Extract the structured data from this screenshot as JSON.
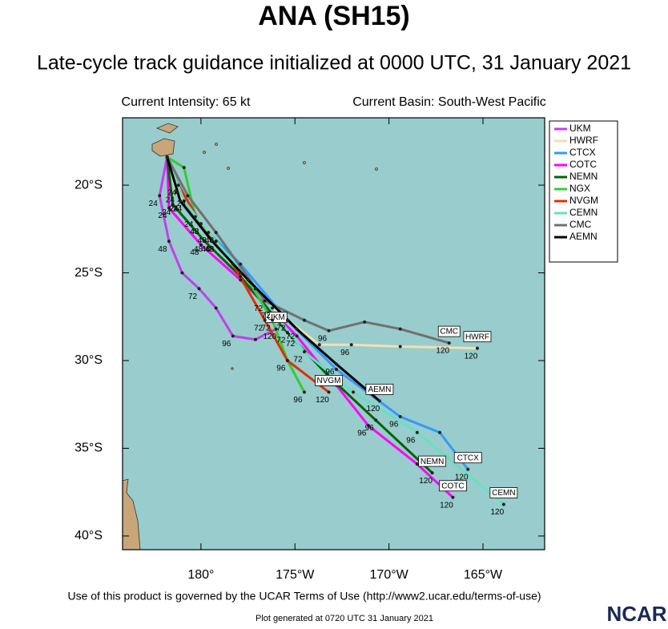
{
  "chart_data": {
    "type": "track",
    "title": "ANA (SH15)",
    "subtitle": "Late-cycle track guidance initialized at 0000 UTC, 31 January 2021",
    "current_intensity": "Current Intensity: 65 kt",
    "current_basin": "Current Basin: South-West Pacific",
    "terms": "Use of this product is governed by the UCAR Terms of Use (http://www2.ucar.edu/terms-of-use)",
    "generated": "Plot generated at 0720 UTC   31 January 2021",
    "logo": "NCAR",
    "xlim": [
      175.83,
      198.28
    ],
    "ylim": [
      -40.78,
      -16.16
    ],
    "xticks": [
      {
        "value": 180,
        "label": "180°"
      },
      {
        "value": 185,
        "label": "175°W"
      },
      {
        "value": 190,
        "label": "170°W"
      },
      {
        "value": 195,
        "label": "165°W"
      }
    ],
    "yticks": [
      {
        "value": -20,
        "label": "20°S"
      },
      {
        "value": -25,
        "label": "25°S"
      },
      {
        "value": -30,
        "label": "30°S"
      },
      {
        "value": -35,
        "label": "35°S"
      },
      {
        "value": -40,
        "label": "40°S"
      }
    ],
    "legend": "upper right",
    "series": [
      {
        "name": "UKM",
        "color": "#c040f0",
        "label_box": true,
        "x": [
          178.2,
          177.8,
          178.3,
          179.0,
          179.9,
          180.8,
          181.7,
          182.9,
          184.0
        ],
        "y": [
          -18.4,
          -20.6,
          -23.2,
          -25.0,
          -25.9,
          -27.0,
          -28.6,
          -28.8,
          -28.2
        ],
        "hour_labels": [
          null,
          24,
          48,
          null,
          72,
          null,
          96,
          null,
          120
        ]
      },
      {
        "name": "HWRF",
        "color": "#f5deb3",
        "label_box": true,
        "x": [
          178.2,
          178.7,
          180.0,
          182.1,
          183.8,
          186.3,
          188.0,
          190.6,
          194.7
        ],
        "y": [
          -18.4,
          -20.4,
          -22.2,
          -25.0,
          -27.0,
          -29.1,
          -29.1,
          -29.2,
          -29.3
        ],
        "hour_labels": [
          null,
          24,
          48,
          null,
          72,
          null,
          96,
          null,
          120
        ]
      },
      {
        "name": "CTCX",
        "color": "#3399ff",
        "label_box": true,
        "x": [
          178.2,
          178.9,
          180.4,
          182.1,
          184.6,
          187.2,
          190.6,
          192.7,
          194.2
        ],
        "y": [
          -18.4,
          -20.9,
          -22.7,
          -24.5,
          -27.7,
          -30.5,
          -33.2,
          -34.1,
          -36.2
        ],
        "hour_labels": [
          null,
          24,
          48,
          null,
          72,
          null,
          96,
          null,
          120
        ]
      },
      {
        "name": "COTC",
        "color": "#ff00ff",
        "label_box": true,
        "x": [
          178.2,
          178.3,
          180.0,
          182.1,
          185.1,
          187.2,
          188.9,
          191.5,
          193.4
        ],
        "y": [
          -18.4,
          -21.3,
          -23.4,
          -25.4,
          -28.6,
          -31.4,
          -33.7,
          -35.9,
          -37.8
        ],
        "hour_labels": [
          null,
          24,
          48,
          null,
          72,
          null,
          96,
          null,
          120
        ]
      },
      {
        "name": "NEMN",
        "color": "#006400",
        "label_box": true,
        "x": [
          178.2,
          178.5,
          180.2,
          182.1,
          184.6,
          186.8,
          189.3,
          192.3
        ],
        "y": [
          -18.4,
          -21.1,
          -23.2,
          -25.2,
          -28.4,
          -30.9,
          -33.4,
          -36.4
        ],
        "hour_labels": [
          null,
          24,
          48,
          null,
          72,
          null,
          96,
          120
        ]
      },
      {
        "name": "NGX",
        "color": "#33cc33",
        "label_box": false,
        "x": [
          178.2,
          179.1,
          179.7,
          180.8,
          182.5,
          183.8,
          184.6,
          185.5
        ],
        "y": [
          -18.4,
          -19.0,
          -21.8,
          -23.2,
          -25.4,
          -27.7,
          -30.0,
          -31.8
        ],
        "hour_labels": [
          null,
          null,
          24,
          48,
          null,
          72,
          null,
          96
        ]
      },
      {
        "name": "NVGM",
        "color": "#e03000",
        "label_box": true,
        "x": [
          178.2,
          178.8,
          180.0,
          181.7,
          183.4,
          184.6,
          186.8
        ],
        "y": [
          -18.4,
          -20.0,
          -22.2,
          -24.5,
          -27.7,
          -30.0,
          -31.8
        ],
        "hour_labels": [
          null,
          24,
          48,
          null,
          72,
          96,
          120
        ]
      },
      {
        "name": "CEMN",
        "color": "#66e0c0",
        "label_box": true,
        "x": [
          178.2,
          179.1,
          180.8,
          182.9,
          185.5,
          188.1,
          191.5,
          196.1
        ],
        "y": [
          -18.4,
          -20.9,
          -23.2,
          -25.9,
          -29.5,
          -31.8,
          -34.1,
          -38.2
        ],
        "hour_labels": [
          null,
          24,
          48,
          null,
          72,
          null,
          96,
          120
        ]
      },
      {
        "name": "CMC",
        "color": "#707070",
        "label_box": true,
        "x": [
          178.2,
          179.3,
          180.8,
          183.4,
          185.5,
          186.8,
          188.7,
          190.6,
          193.2
        ],
        "y": [
          -18.4,
          -20.6,
          -22.7,
          -26.6,
          -27.7,
          -28.3,
          -27.8,
          -28.2,
          -29.0
        ],
        "hour_labels": [
          null,
          24,
          48,
          72,
          null,
          96,
          null,
          null,
          120
        ]
      },
      {
        "name": "AEMN",
        "color": "#000000",
        "label_box": true,
        "x": [
          178.2,
          178.9,
          180.6,
          182.5,
          185.1,
          187.2,
          189.5
        ],
        "y": [
          -18.4,
          -20.9,
          -23.2,
          -25.4,
          -28.2,
          -30.2,
          -32.3
        ],
        "hour_labels": [
          null,
          24,
          48,
          null,
          72,
          96,
          120
        ]
      }
    ]
  }
}
